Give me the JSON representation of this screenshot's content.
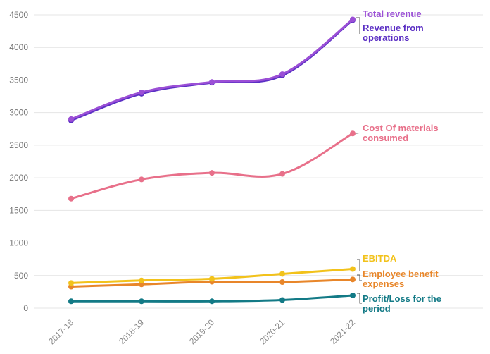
{
  "chart_data": {
    "type": "line",
    "title": "",
    "xlabel": "",
    "ylabel": "",
    "categories": [
      "2017-18",
      "2018-19",
      "2019-20",
      "2020-21",
      "2021-22"
    ],
    "ylim": [
      0,
      4500
    ],
    "yticks": [
      0,
      500,
      1000,
      1500,
      2000,
      2500,
      3000,
      3500,
      4000,
      4500
    ],
    "grid": true,
    "series": [
      {
        "name": "Total revenue",
        "color": "#9b4fd6",
        "values": [
          2900,
          3310,
          3470,
          3590,
          4430
        ]
      },
      {
        "name": "Revenue from operations",
        "color": "#5b2fc4",
        "values": [
          2880,
          3290,
          3460,
          3570,
          4420
        ]
      },
      {
        "name": "Cost Of materials consumed",
        "color": "#e8708a",
        "values": [
          1680,
          1975,
          2075,
          2060,
          2680
        ]
      },
      {
        "name": "EBITDA",
        "color": "#f2c21b",
        "values": [
          385,
          425,
          450,
          525,
          600
        ]
      },
      {
        "name": "Employee benefit expenses",
        "color": "#e8862a",
        "values": [
          330,
          365,
          405,
          400,
          440
        ]
      },
      {
        "name": "Profit/Loss for the period",
        "color": "#137a86",
        "values": [
          105,
          105,
          105,
          125,
          195
        ]
      }
    ],
    "labels": [
      {
        "lines": [
          "Total revenue"
        ],
        "color": "#9b4fd6"
      },
      {
        "lines": [
          "Revenue from",
          "operations"
        ],
        "color": "#5b2fc4"
      },
      {
        "lines": [
          "Cost Of materials",
          "consumed"
        ],
        "color": "#e8708a"
      },
      {
        "lines": [
          "EBITDA"
        ],
        "color": "#f2c21b"
      },
      {
        "lines": [
          "Employee benefit",
          "expenses"
        ],
        "color": "#e8862a"
      },
      {
        "lines": [
          "Profit/Loss for the",
          "period"
        ],
        "color": "#137a86"
      }
    ]
  }
}
